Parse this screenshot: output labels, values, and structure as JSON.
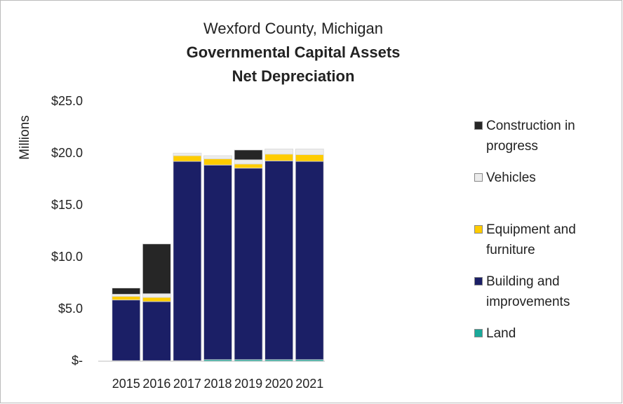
{
  "chart_data": {
    "type": "stacked_bar",
    "title": "Wexford County, Michigan",
    "subtitle": [
      "Governmental Capital Assets",
      "Net Depreciation"
    ],
    "y_label": "Millions",
    "categories": [
      "2015",
      "2016",
      "2017",
      "2018",
      "2019",
      "2020",
      "2021"
    ],
    "series": [
      {
        "name": "Land",
        "color": "#1aa99a",
        "values": [
          0.05,
          0.05,
          0.05,
          0.15,
          0.15,
          0.15,
          0.15
        ]
      },
      {
        "name": "Building and improvements",
        "color": "#1b1f66",
        "values": [
          5.85,
          5.7,
          19.2,
          18.75,
          18.45,
          19.15,
          19.1
        ]
      },
      {
        "name": "Equipment and furniture",
        "color": "#ffcc00",
        "values": [
          0.35,
          0.4,
          0.55,
          0.6,
          0.4,
          0.65,
          0.65
        ]
      },
      {
        "name": "Vehicles",
        "color": "#ececec",
        "values": [
          0.2,
          0.35,
          0.25,
          0.3,
          0.4,
          0.5,
          0.55
        ]
      },
      {
        "name": "Construction in progress",
        "color": "#262626",
        "values": [
          0.6,
          4.8,
          0,
          0,
          0.95,
          0,
          0
        ]
      }
    ],
    "ylim": [
      0,
      25
    ],
    "yticks": [
      {
        "value": 0,
        "label": "$-"
      },
      {
        "value": 5,
        "label": "$5.0"
      },
      {
        "value": 10,
        "label": "$10.0"
      },
      {
        "value": 15,
        "label": "$15.0"
      },
      {
        "value": 20,
        "label": "$20.0"
      },
      {
        "value": 25,
        "label": "$25.0"
      }
    ],
    "grid": false,
    "legend": "right"
  }
}
